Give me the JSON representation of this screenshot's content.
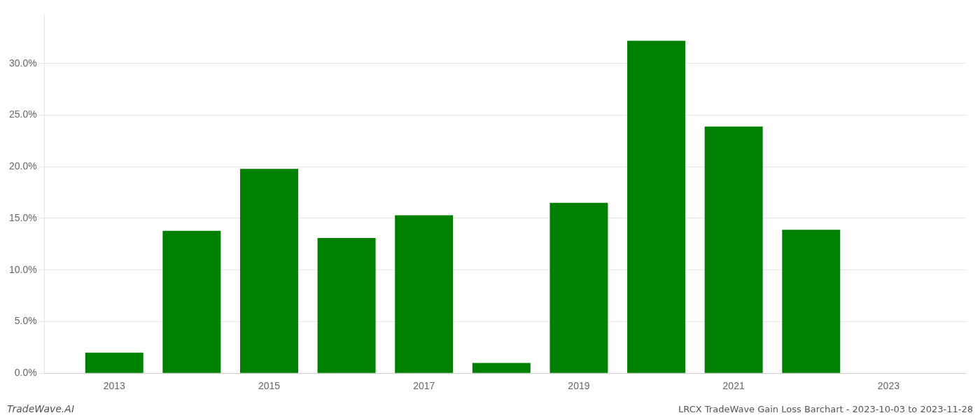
{
  "chart_data": {
    "type": "bar",
    "x": [
      2013,
      2014,
      2015,
      2016,
      2017,
      2018,
      2019,
      2020,
      2021,
      2022,
      2023
    ],
    "values": [
      0.02,
      0.138,
      0.198,
      0.131,
      0.153,
      0.01,
      0.165,
      0.322,
      0.239,
      0.139,
      0.0
    ],
    "color": "#008000",
    "xlim": [
      2012.1,
      2024.0
    ],
    "xticks": [
      2013,
      2015,
      2017,
      2019,
      2021,
      2023
    ],
    "ylim": [
      0,
      0.348
    ],
    "yticks": [
      {
        "value": 0.0,
        "label": "0.0%"
      },
      {
        "value": 0.05,
        "label": "5.0%"
      },
      {
        "value": 0.1,
        "label": "10.0%"
      },
      {
        "value": 0.15,
        "label": "15.0%"
      },
      {
        "value": 0.2,
        "label": "20.0%"
      },
      {
        "value": 0.25,
        "label": "25.0%"
      },
      {
        "value": 0.3,
        "label": "30.0%"
      }
    ],
    "grid": true,
    "annotations": [
      "TradeWave.AI",
      "LRCX TradeWave Gain Loss Barchart - 2023-10-03 to 2023-11-28"
    ]
  }
}
